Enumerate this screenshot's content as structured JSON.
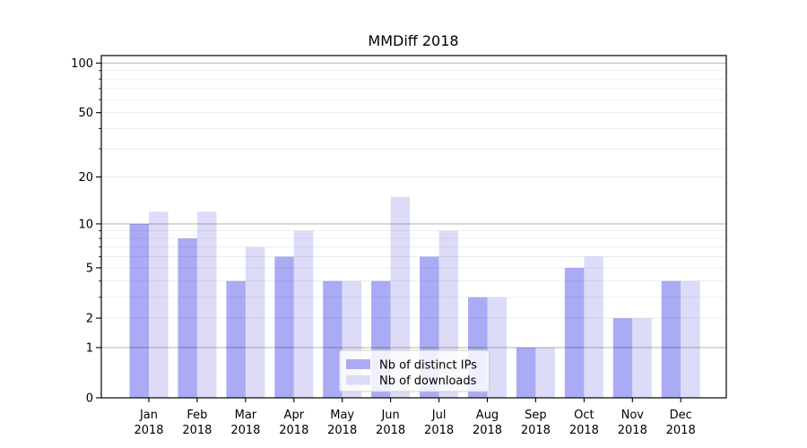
{
  "chart_data": {
    "type": "bar",
    "title": "MMDiff 2018",
    "x_axis": {
      "categories": [
        "Jan",
        "Feb",
        "Mar",
        "Apr",
        "May",
        "Jun",
        "Jul",
        "Aug",
        "Sep",
        "Oct",
        "Nov",
        "Dec"
      ],
      "tick_line2": "2018"
    },
    "y_axis": {
      "scale": "log1p",
      "min": 0,
      "max": 111,
      "labeled_ticks": [
        100,
        50,
        20,
        10,
        5,
        2,
        1,
        0
      ],
      "major_gridlines": [
        1,
        10,
        100
      ],
      "minor_gridlines": [
        2,
        3,
        4,
        5,
        6,
        7,
        8,
        9,
        20,
        30,
        40,
        50,
        60,
        70,
        80,
        90
      ]
    },
    "series": [
      {
        "name": "Nb of distinct IPs",
        "color": "#aaaaf5",
        "values": [
          10,
          8,
          4,
          6,
          4,
          4,
          6,
          3,
          1,
          5,
          2,
          4
        ]
      },
      {
        "name": "Nb of downloads",
        "color": "#dcdcf8",
        "values": [
          12,
          12,
          7,
          9,
          4,
          15,
          9,
          3,
          1,
          6,
          2,
          4
        ]
      }
    ],
    "legend": {
      "position": "lower center",
      "entries": [
        "Nb of distinct IPs",
        "Nb of downloads"
      ]
    },
    "grid": true
  }
}
